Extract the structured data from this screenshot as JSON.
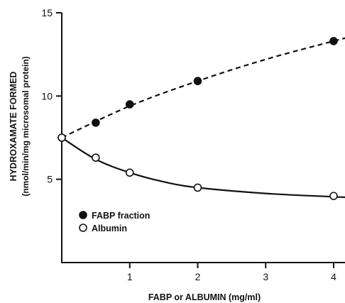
{
  "chart_data": {
    "type": "line",
    "xlabel": "FABP or ALBUMIN (mg/ml)",
    "ylabel_line1": "HYDROXAMATE FORMED",
    "ylabel_line2": "(nmol/min/mg microsomal protein)",
    "xlim": [
      0,
      4.2
    ],
    "ylim": [
      0,
      15
    ],
    "x_ticks": [
      1,
      2,
      3,
      4
    ],
    "y_ticks": [
      5,
      10,
      15
    ],
    "legend_position": "lower-left",
    "series": [
      {
        "name": "FABP fraction",
        "marker": "filled-circle",
        "line_style": "dashed",
        "x": [
          0,
          0.5,
          1,
          2,
          4
        ],
        "y": [
          7.5,
          8.4,
          9.5,
          10.9,
          13.3
        ],
        "curve_x": [
          0,
          1,
          2,
          3,
          4,
          4.3
        ],
        "curve_y": [
          7.5,
          9.4,
          10.9,
          12.2,
          13.3,
          13.6
        ]
      },
      {
        "name": "Albumin",
        "marker": "open-circle",
        "line_style": "solid",
        "x": [
          0,
          0.5,
          1,
          2,
          4
        ],
        "y": [
          7.5,
          6.3,
          5.4,
          4.5,
          4.0
        ],
        "curve_x": [
          0,
          0.5,
          1,
          1.5,
          2,
          3,
          4,
          4.3
        ],
        "curve_y": [
          7.5,
          6.2,
          5.4,
          4.85,
          4.5,
          4.15,
          3.95,
          3.9
        ]
      }
    ]
  }
}
